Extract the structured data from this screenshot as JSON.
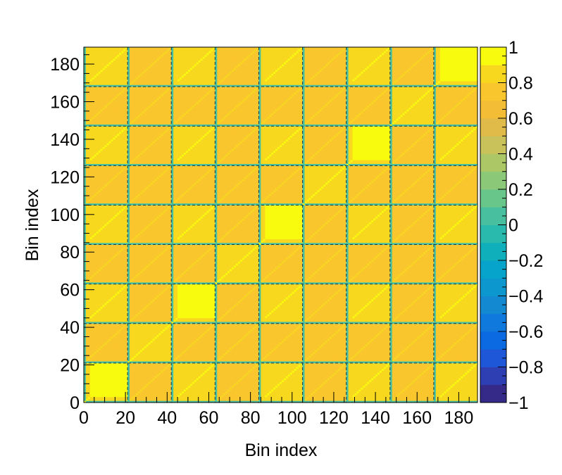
{
  "chart_data": {
    "type": "heatmap",
    "title": "",
    "xlabel": "Bin index",
    "ylabel": "Bin index",
    "xlim": [
      0,
      189
    ],
    "ylim": [
      0,
      189
    ],
    "x_ticks": [
      0,
      20,
      40,
      60,
      80,
      100,
      120,
      140,
      160,
      180
    ],
    "y_ticks": [
      0,
      20,
      40,
      60,
      80,
      100,
      120,
      140,
      160,
      180
    ],
    "n_bins": 189,
    "block_size": 21,
    "n_blocks": 9,
    "block_boundaries": [
      21,
      42,
      63,
      84,
      105,
      126,
      147,
      168
    ],
    "colorbar": {
      "range": [
        -1,
        1
      ],
      "ticks": [
        1,
        0.8,
        0.6,
        0.4,
        0.2,
        0,
        -0.2,
        -0.4,
        -0.6,
        -0.8,
        -1
      ],
      "tick_labels": [
        "1",
        "0.8",
        "0.6",
        "0.4",
        "0.2",
        "0",
        "−0.2",
        "−0.4",
        "−0.6",
        "−0.8",
        "−1"
      ],
      "n_levels": 20,
      "palette": "kBird"
    },
    "values_description_levels": {
      "within_block_typical": 0.92,
      "between_block_typical": 0.85,
      "diagonal": 1.0,
      "block_edge_bin": 0.0
    },
    "grid": false
  }
}
